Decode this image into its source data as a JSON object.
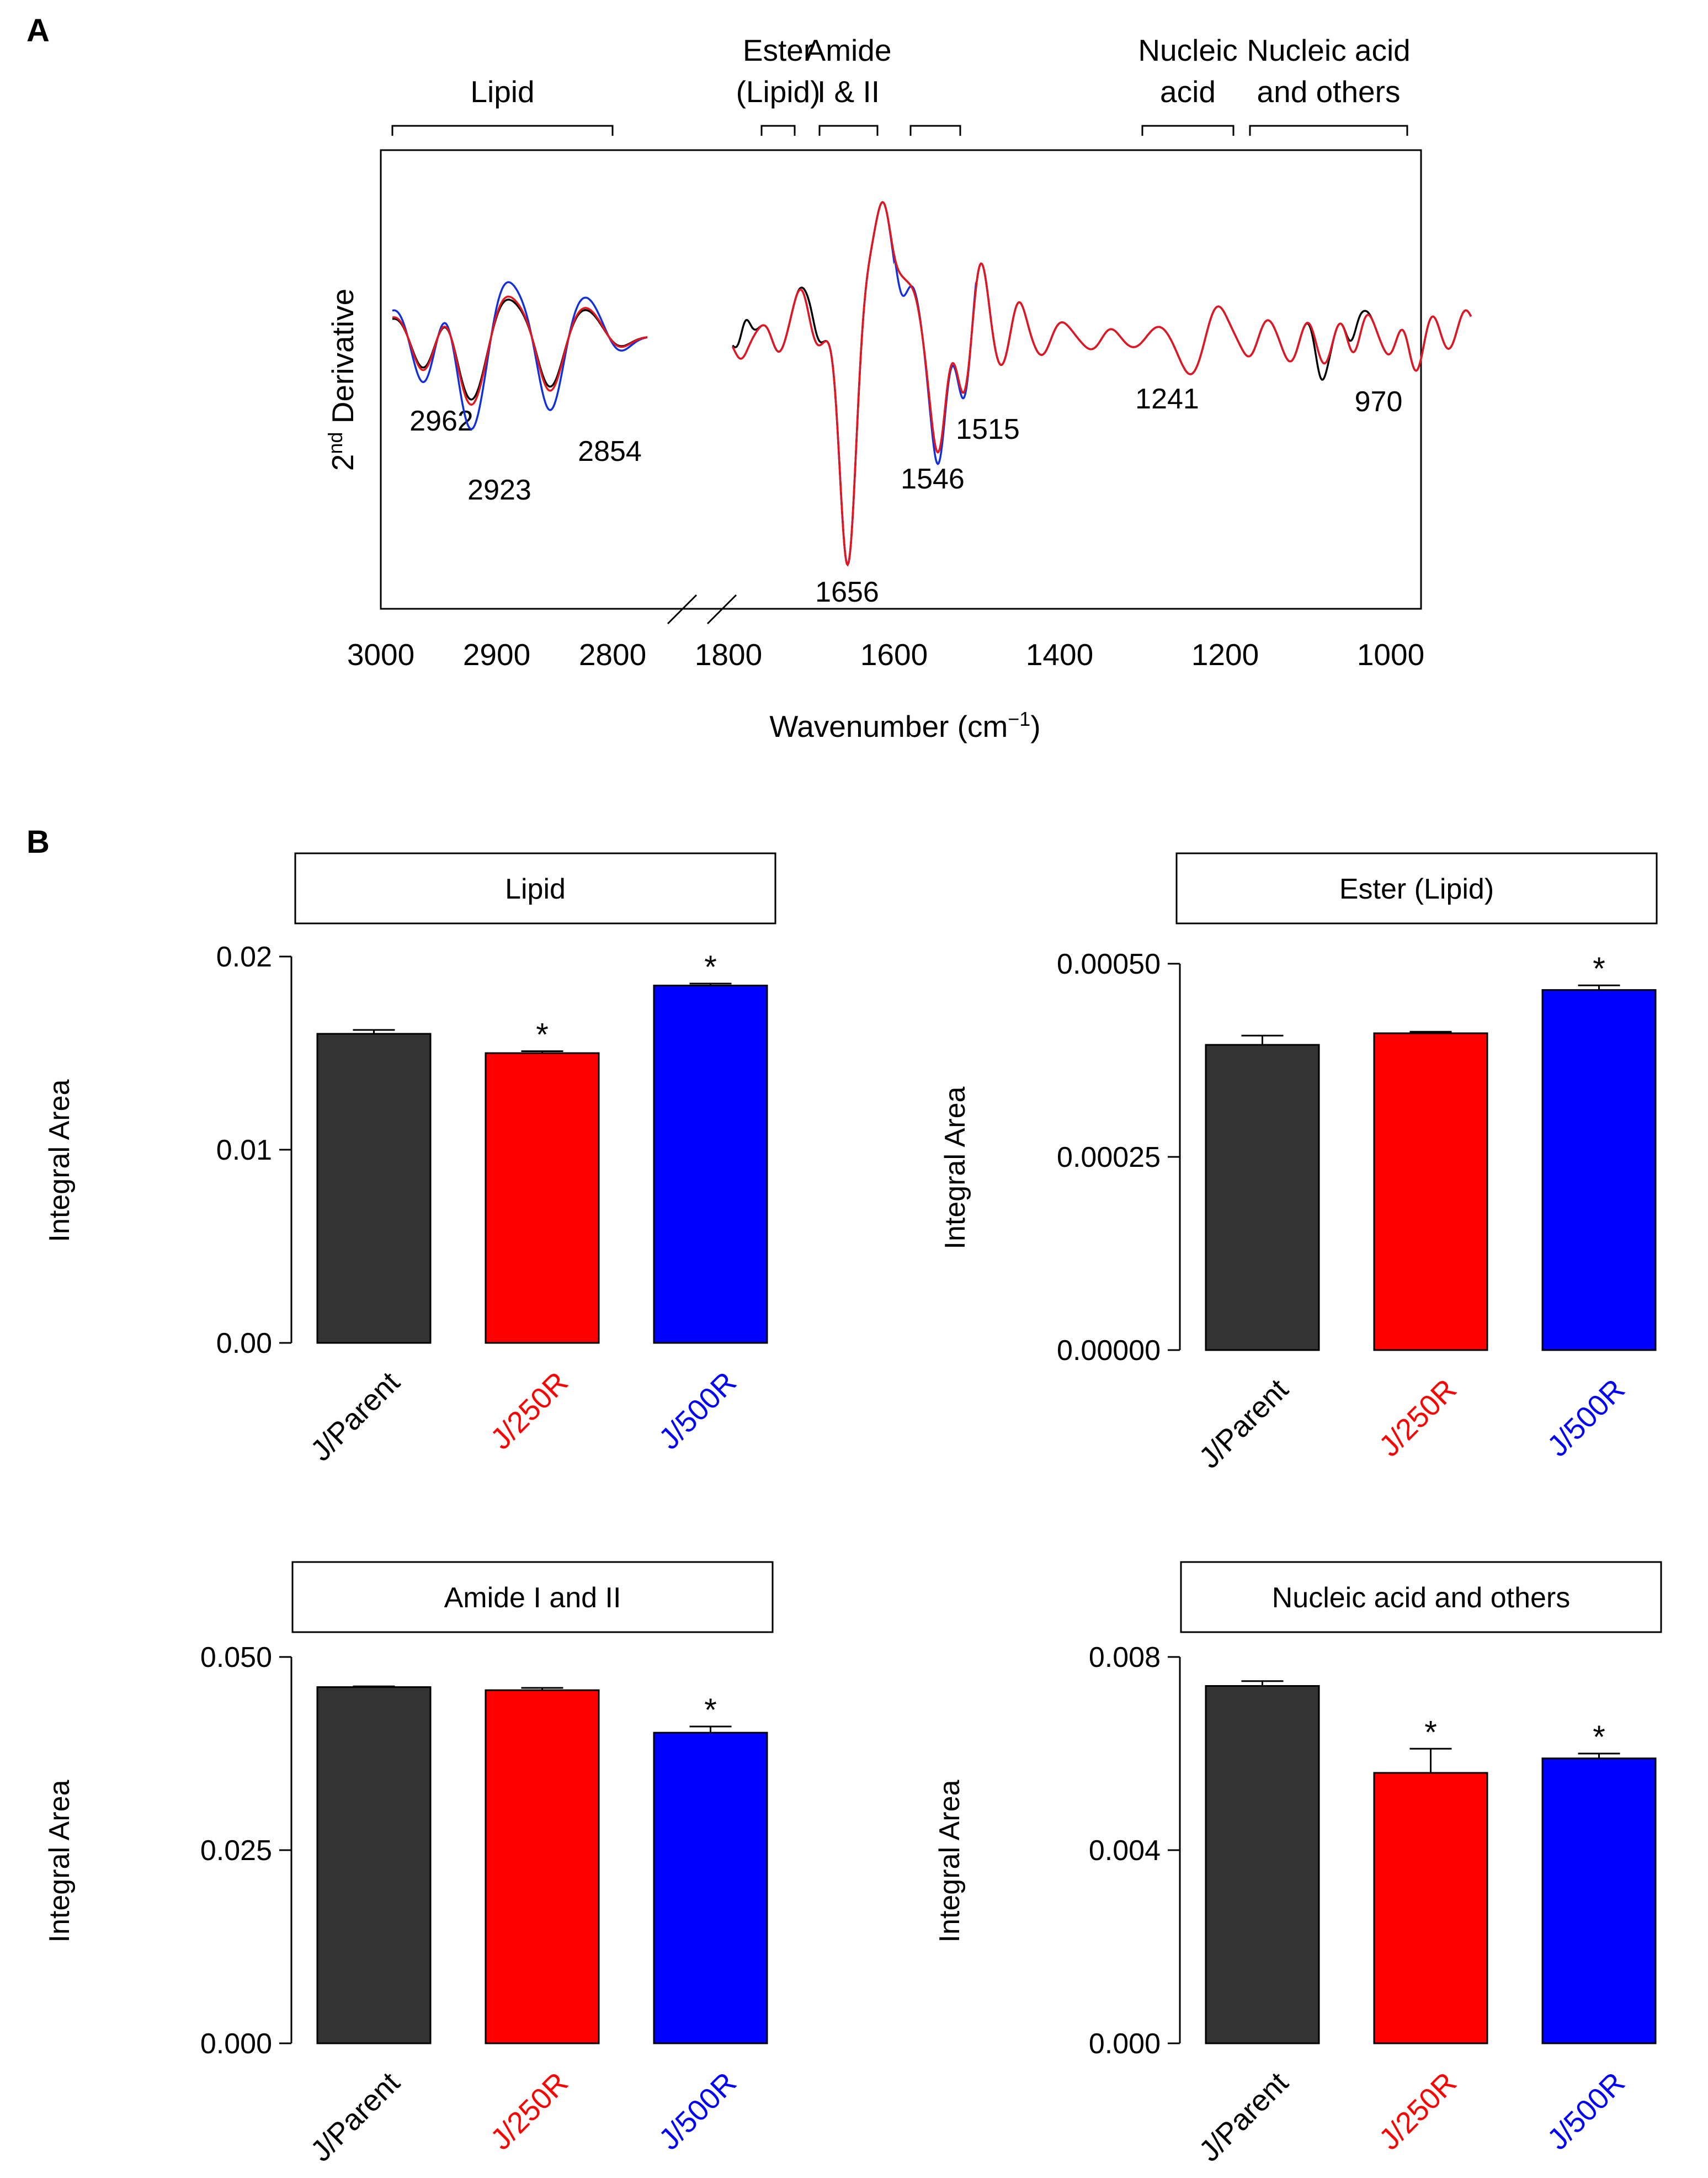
{
  "panels": {
    "a": "A",
    "b": "B"
  },
  "chart_data": [
    {
      "type": "line",
      "panel": "A",
      "ylabel_main": "2",
      "ylabel_sup": "nd",
      "ylabel_rest": " Derivative",
      "xlabel_main": "Wavenumber (cm",
      "xlabel_sup": "−1",
      "xlabel_end": ")",
      "x_ticks_left": [
        "3000",
        "2900",
        "2800"
      ],
      "x_ticks_right": [
        "1800",
        "1600",
        "1400",
        "1200",
        "1000"
      ],
      "x_ranges": {
        "left": [
          3000,
          2770
        ],
        "right": [
          1800,
          900
        ]
      },
      "axis_break": true,
      "regions": [
        {
          "lines": [
            "Lipid"
          ],
          "from": 2990,
          "to": 2800
        },
        {
          "lines": [
            "Ester",
            "(Lipid)"
          ],
          "from": 1760,
          "to": 1720
        },
        {
          "lines": [
            "Amide",
            "I & II"
          ],
          "from": 1690,
          "to": 1620
        },
        {
          "lines": [],
          "from": 1580,
          "to": 1520
        },
        {
          "lines": [
            "Nucleic",
            "acid"
          ],
          "from": 1300,
          "to": 1190
        },
        {
          "lines": [
            "Nucleic acid",
            "and others"
          ],
          "from": 1170,
          "to": 980
        }
      ],
      "peak_labels": [
        "2962",
        "2923",
        "2854",
        "1656",
        "1546",
        "1515",
        "1241",
        "970"
      ],
      "series": [
        {
          "color": "#000000"
        },
        {
          "color": "#e8141c"
        },
        {
          "color": "#1030e0"
        }
      ]
    },
    {
      "type": "bar",
      "panel": "B",
      "title": "Lipid",
      "ylabel": "Integral Area",
      "categories": [
        "J/Parent",
        "J/250R",
        "J/500R"
      ],
      "values": [
        0.016,
        0.015,
        0.0185
      ],
      "errors": [
        0.0002,
        0.0001,
        0.0001
      ],
      "significant": [
        false,
        true,
        true
      ],
      "ylim": [
        0,
        0.02
      ],
      "yticks": [
        "0.00",
        "0.01",
        "0.02"
      ],
      "colors": [
        "#333333",
        "#ff0000",
        "#0000ff"
      ]
    },
    {
      "type": "bar",
      "panel": "B",
      "title": "Ester (Lipid)",
      "ylabel": "Integral Area",
      "categories": [
        "J/Parent",
        "J/250R",
        "J/500R"
      ],
      "values": [
        0.000395,
        0.00041,
        0.000466
      ],
      "errors": [
        1.2e-05,
        2e-06,
        6e-06
      ],
      "significant": [
        false,
        false,
        true
      ],
      "ylim": [
        0,
        0.0005
      ],
      "yticks": [
        "0.00000",
        "0.00025",
        "0.00050"
      ],
      "colors": [
        "#333333",
        "#ff0000",
        "#0000ff"
      ]
    },
    {
      "type": "bar",
      "panel": "B",
      "title": "Amide I and II",
      "ylabel": "Integral Area",
      "categories": [
        "J/Parent",
        "J/250R",
        "J/500R"
      ],
      "values": [
        0.0461,
        0.0457,
        0.0402
      ],
      "errors": [
        0.0001,
        0.0003,
        0.0008
      ],
      "significant": [
        false,
        false,
        true
      ],
      "ylim": [
        0,
        0.05
      ],
      "yticks": [
        "0.000",
        "0.025",
        "0.050"
      ],
      "colors": [
        "#333333",
        "#ff0000",
        "#0000ff"
      ]
    },
    {
      "type": "bar",
      "panel": "B",
      "title": "Nucleic acid and others",
      "ylabel": "Integral Area",
      "categories": [
        "J/Parent",
        "J/250R",
        "J/500R"
      ],
      "values": [
        0.0074,
        0.0056,
        0.0059
      ],
      "errors": [
        0.0001,
        0.0005,
        0.0001
      ],
      "significant": [
        false,
        true,
        true
      ],
      "ylim": [
        0,
        0.008
      ],
      "yticks": [
        "0.000",
        "0.004",
        "0.008"
      ],
      "colors": [
        "#333333",
        "#ff0000",
        "#0000ff"
      ]
    }
  ]
}
